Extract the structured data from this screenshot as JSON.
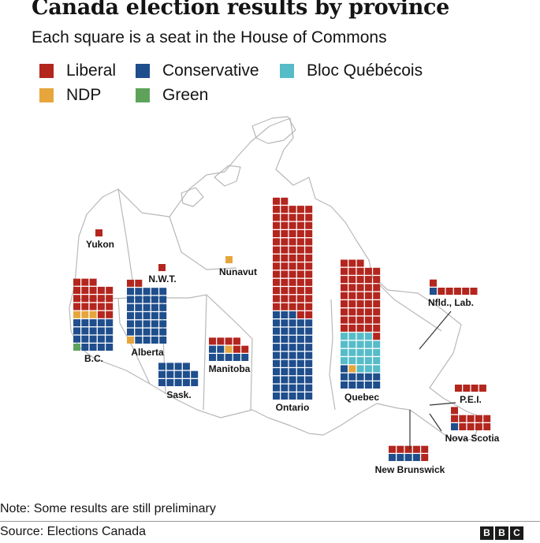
{
  "header": {
    "title": "Canada election results by province",
    "subtitle": "Each square is a seat in the House of Commons"
  },
  "colors": {
    "Liberal": "#b3261e",
    "Conservative": "#1f4e8c",
    "Bloc Québécois": "#56bcc8",
    "NDP": "#e6a63c",
    "Green": "#5fa35b",
    "map_line": "#b8b8b8",
    "leader": "#333333"
  },
  "legend": {
    "items": [
      {
        "label": "Liberal",
        "color": "#b3261e"
      },
      {
        "label": "Conservative",
        "color": "#1f4e8c"
      },
      {
        "label": "Bloc Québécois",
        "color": "#56bcc8"
      },
      {
        "label": "NDP",
        "color": "#e6a63c"
      },
      {
        "label": "Green",
        "color": "#5fa35b"
      }
    ]
  },
  "chart_data": {
    "type": "waffle",
    "title": "Canada election results by province",
    "subtitle": "Each square is a seat in the House of Commons",
    "series_order": [
      "Liberal",
      "Conservative",
      "Bloc Québécois",
      "NDP",
      "Green"
    ],
    "provinces": [
      {
        "name": "Yukon",
        "seats": {
          "Liberal": 1
        }
      },
      {
        "name": "N.W.T.",
        "seats": {
          "Liberal": 1
        }
      },
      {
        "name": "Nunavut",
        "seats": {
          "NDP": 1
        }
      },
      {
        "name": "B.C.",
        "seats": {
          "Green": 1,
          "Conservative": 19,
          "NDP": 3,
          "Liberal": 20
        }
      },
      {
        "name": "Alberta",
        "seats": {
          "NDP": 1,
          "Conservative": 34,
          "Liberal": 2
        }
      },
      {
        "name": "Sask.",
        "seats": {
          "Conservative": 14
        }
      },
      {
        "name": "Manitoba",
        "seats": {
          "Conservative": 7,
          "NDP": 1,
          "Liberal": 6
        }
      },
      {
        "name": "Ontario",
        "seats": {
          "Conservative": 53,
          "Liberal": 69
        }
      },
      {
        "name": "Quebec",
        "seats": {
          "Conservative": 11,
          "NDP": 1,
          "Bloc Québécois": 22,
          "Liberal": 44
        }
      },
      {
        "name": "Nfld., Lab.",
        "seats": {
          "Conservative": 1,
          "Liberal": 6
        }
      },
      {
        "name": "P.E.I.",
        "seats": {
          "Liberal": 4
        }
      },
      {
        "name": "Nova Scotia",
        "seats": {
          "Conservative": 1,
          "Liberal": 10
        }
      },
      {
        "name": "New Brunswick",
        "seats": {
          "Conservative": 4,
          "Liberal": 6
        }
      }
    ]
  },
  "footer": {
    "note": "Note: Some results are still preliminary",
    "source": "Source: Elections Canada",
    "logo_letters": [
      "B",
      "B",
      "C"
    ]
  }
}
